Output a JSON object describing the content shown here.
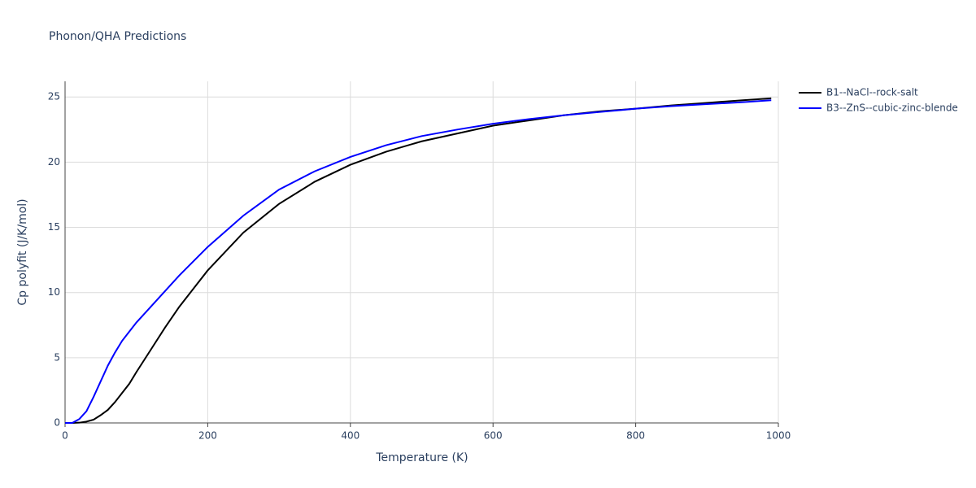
{
  "chart_data": {
    "type": "line",
    "title": "Phonon/QHA Predictions",
    "x_label": "Temperature (K)",
    "y_label": "Cp polyfit (J/K/mol)",
    "xlim": [
      0,
      1000
    ],
    "ylim": [
      0,
      26.2
    ],
    "xticks": [
      0,
      200,
      400,
      600,
      800,
      1000
    ],
    "yticks": [
      0,
      5,
      10,
      15,
      20,
      25
    ],
    "grid": true,
    "legend": "right",
    "x": [
      0,
      10,
      20,
      30,
      40,
      50,
      60,
      70,
      80,
      90,
      100,
      120,
      140,
      160,
      180,
      200,
      250,
      300,
      350,
      400,
      450,
      500,
      550,
      600,
      650,
      700,
      750,
      800,
      850,
      900,
      950,
      990
    ],
    "series": [
      {
        "name": "B1--NaCl--rock-salt",
        "color": "#000000",
        "values": [
          0,
          0,
          0.02,
          0.1,
          0.25,
          0.6,
          1.0,
          1.6,
          2.3,
          3.0,
          3.9,
          5.6,
          7.3,
          8.9,
          10.3,
          11.7,
          14.6,
          16.8,
          18.5,
          19.8,
          20.8,
          21.6,
          22.2,
          22.8,
          23.2,
          23.6,
          23.9,
          24.1,
          24.35,
          24.55,
          24.75,
          24.9
        ]
      },
      {
        "name": "B3--ZnS--cubic-zinc-blende",
        "color": "#0000ff",
        "values": [
          0,
          0,
          0.3,
          0.9,
          2.0,
          3.2,
          4.4,
          5.4,
          6.3,
          7.0,
          7.7,
          8.9,
          10.1,
          11.3,
          12.4,
          13.5,
          15.9,
          17.9,
          19.3,
          20.4,
          21.3,
          22.0,
          22.5,
          22.95,
          23.3,
          23.6,
          23.85,
          24.1,
          24.3,
          24.45,
          24.6,
          24.75
        ]
      }
    ]
  }
}
